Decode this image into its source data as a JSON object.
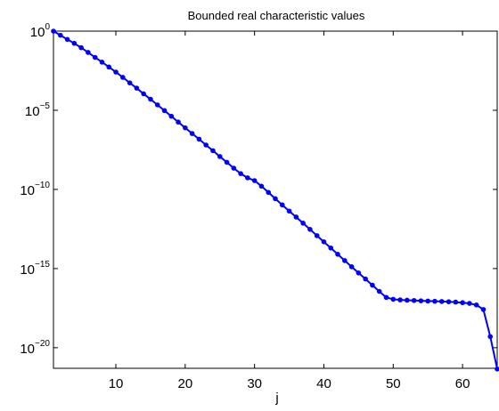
{
  "chart_data": {
    "type": "line",
    "title": "Bounded real characteristic values",
    "xlabel": "j",
    "ylabel": "",
    "y_scale": "log",
    "xlim": [
      1,
      65
    ],
    "ylim": [
      5e-22,
      1
    ],
    "x_ticks": [
      10,
      20,
      30,
      40,
      50,
      60
    ],
    "y_ticks": [
      {
        "base": "10",
        "exponent": "0",
        "value": 1
      },
      {
        "base": "10",
        "exponent": "−5",
        "value": 1e-05
      },
      {
        "base": "10",
        "exponent": "−10",
        "value": 1e-10
      },
      {
        "base": "10",
        "exponent": "−15",
        "value": 1e-15
      },
      {
        "base": "10",
        "exponent": "−20",
        "value": 1e-20
      }
    ],
    "grid": false,
    "legend": "none",
    "series": [
      {
        "color": "#0000ff",
        "marker": "dot",
        "x": [
          1,
          2,
          3,
          4,
          5,
          6,
          7,
          8,
          9,
          10,
          11,
          12,
          13,
          14,
          15,
          16,
          17,
          18,
          19,
          20,
          21,
          22,
          23,
          24,
          25,
          26,
          27,
          28,
          29,
          30,
          31,
          32,
          33,
          34,
          35,
          36,
          37,
          38,
          39,
          40,
          41,
          42,
          43,
          44,
          45,
          46,
          47,
          48,
          49,
          50,
          51,
          52,
          53,
          54,
          55,
          56,
          57,
          58,
          59,
          60,
          61,
          62,
          63,
          64,
          65
        ],
        "y": [
          1,
          0.55,
          0.3,
          0.17,
          0.09,
          0.045,
          0.022,
          0.011,
          0.0054,
          0.0026,
          0.0012,
          0.00054,
          0.00025,
          0.00011,
          5e-05,
          2.2e-05,
          9.6e-06,
          4.2e-06,
          1.8e-06,
          7.8e-07,
          3.4e-07,
          1.5e-07,
          6.4e-08,
          2.8e-08,
          1.2e-08,
          5.2e-09,
          2.2e-09,
          1e-09,
          5.4e-10,
          3.6e-10,
          1.6e-10,
          6.5e-11,
          2.6e-11,
          1.05e-11,
          4.3e-12,
          1.8e-12,
          7.4e-13,
          3e-13,
          1.2e-13,
          4.9e-14,
          2e-14,
          8e-15,
          3.2e-15,
          1.3e-15,
          5.3e-16,
          2.2e-16,
          8.9e-17,
          3.6e-17,
          1.5e-17,
          1.15e-17,
          1.05e-17,
          1e-17,
          9.6e-18,
          9.2e-18,
          8.9e-18,
          8.6e-18,
          8.3e-18,
          8e-18,
          7.6e-18,
          7e-18,
          6.3e-18,
          5e-18,
          2.6e-18,
          5e-20,
          4.5e-22
        ]
      }
    ]
  }
}
